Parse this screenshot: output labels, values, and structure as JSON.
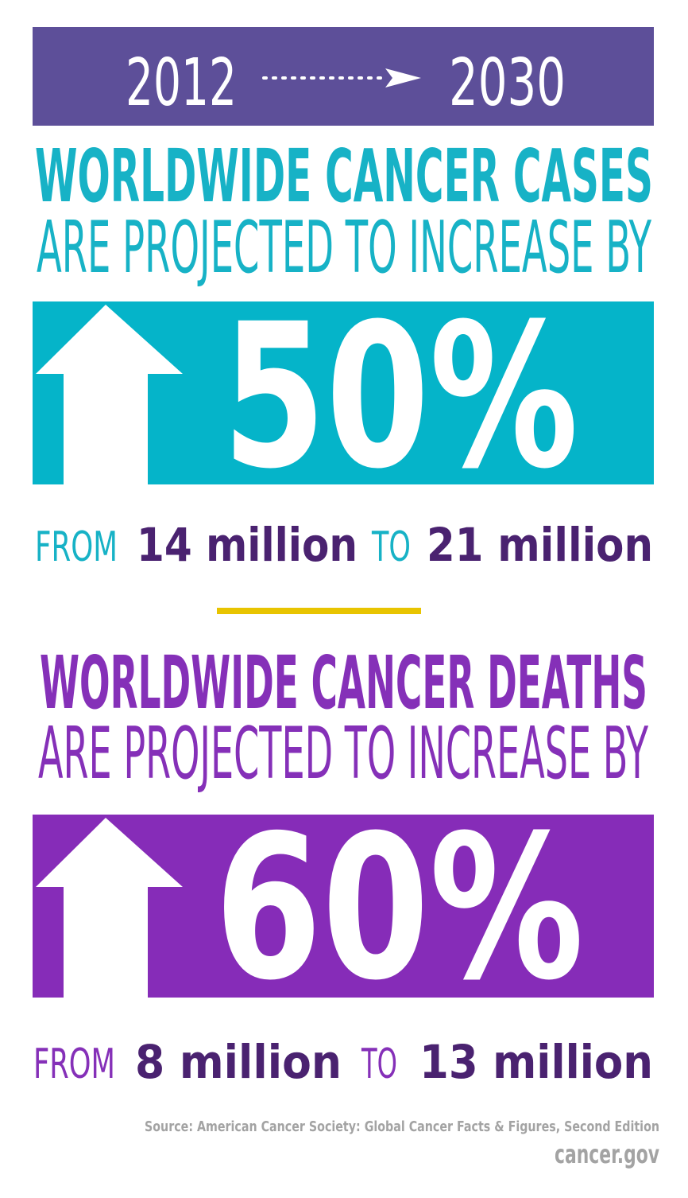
{
  "header": {
    "start_year": "2012",
    "end_year": "2030"
  },
  "sections": [
    {
      "heading": "WORLDWIDE CANCER CASES",
      "subheading": "ARE PROJECTED TO INCREASE BY",
      "percent": "50%",
      "from_word": "FROM",
      "from": "14 million",
      "to_word": "TO",
      "to": "21 million"
    },
    {
      "heading": "WORLDWIDE CANCER DEATHS",
      "subheading": "ARE PROJECTED TO INCREASE BY",
      "percent": "60%",
      "from_word": "FROM",
      "from": "8 million",
      "to_word": "TO",
      "to": "13 million"
    }
  ],
  "footer": {
    "source": "Source: American Cancer Society: Global Cancer Facts & Figures, Second Edition",
    "site": "cancer.gov"
  }
}
